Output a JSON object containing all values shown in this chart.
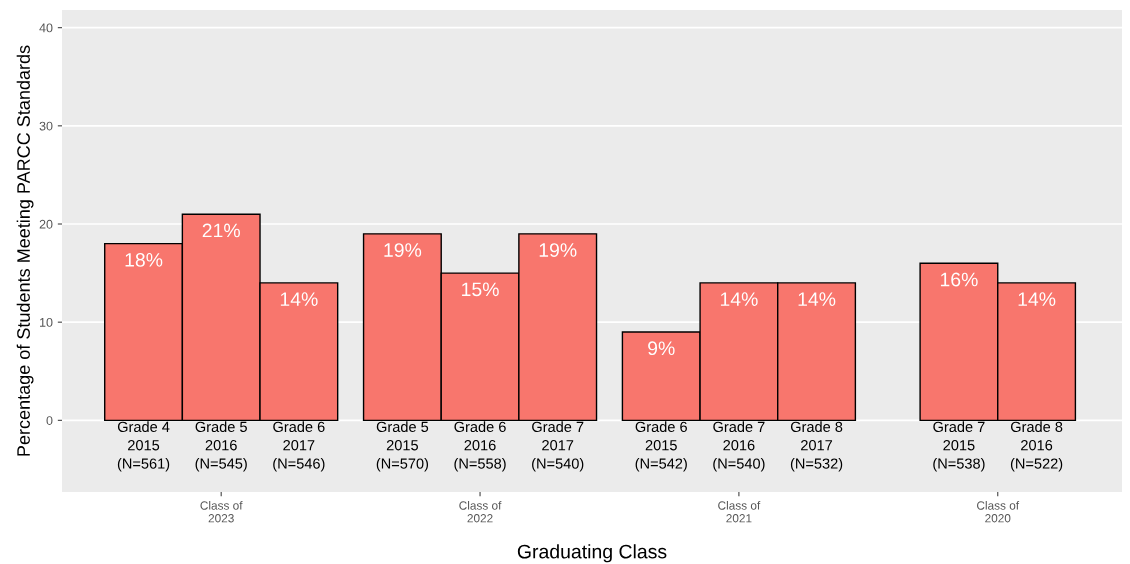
{
  "chart_data": {
    "type": "bar",
    "xlabel": "Graduating Class",
    "ylabel": "Percentage of Students Meeting PARCC Standards",
    "categories": [
      "Grade 4\n2015\n(N=561)",
      "Grade 5\n2016\n(N=545)",
      "Grade 6\n2017\n(N=546)",
      null,
      "Grade 5\n2015\n(N=570)",
      "Grade 6\n2016\n(N=558)",
      "Grade 7\n2017\n(N=540)",
      null,
      "Grade 6\n2015\n(N=542)",
      "Grade 7\n2016\n(N=540)",
      "Grade 8\n2017\n(N=532)",
      null,
      "Grade 7\n2015\n(N=538)",
      "Grade 8\n2016\n(N=522)"
    ],
    "values": [
      18,
      21,
      14,
      null,
      19,
      15,
      19,
      null,
      9,
      14,
      14,
      null,
      16,
      14
    ],
    "value_labels": [
      "18%",
      "21%",
      "14%",
      null,
      "19%",
      "15%",
      "19%",
      null,
      "9%",
      "14%",
      "14%",
      null,
      "16%",
      "14%"
    ],
    "color": "#f8766d",
    "annotations": [
      "Class of\n2023",
      "Class of\n2022",
      "Class of\n2021",
      "Class of\n2020"
    ],
    "ylim": [
      -7.3,
      41.8
    ],
    "yticks": [
      0,
      10,
      20,
      30,
      40
    ],
    "grid": "y",
    "legend": false
  }
}
